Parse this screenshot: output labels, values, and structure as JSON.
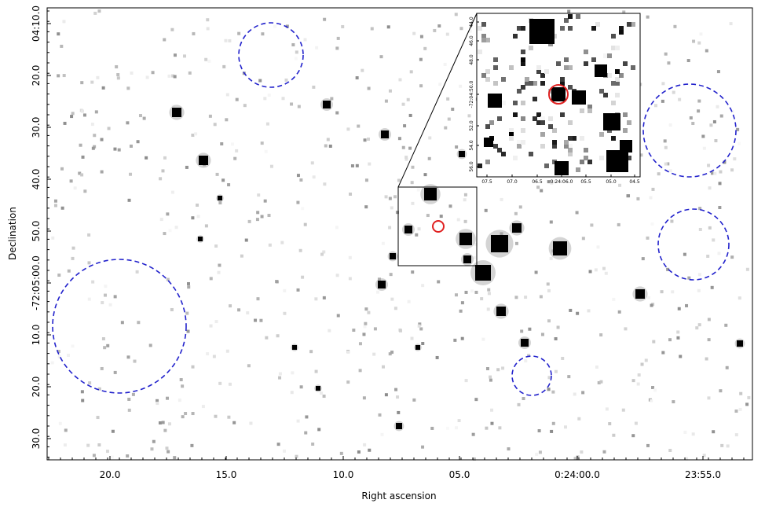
{
  "axes": {
    "x_label": "Right ascension",
    "y_label": "Declination",
    "x_ticks": [
      "20.0",
      "15.0",
      "10.0",
      "05.0",
      "0:24:00.0",
      "23:55.0"
    ],
    "y_ticks": [
      "04:10.0",
      "20.0",
      "30.0",
      "40.0",
      "50.0",
      "-72:05:00.0",
      "10.0",
      "20.0",
      "30.0"
    ]
  },
  "inset": {
    "x_ticks": [
      "07.5",
      "07.0",
      "06.5",
      "0:24:06.0",
      "05.5",
      "05.0",
      "04.5"
    ],
    "y_ticks": [
      "44.0",
      "46.0",
      "48.0",
      "-72:04:50.0",
      "52.0",
      "54.0",
      "56.0"
    ]
  }
}
